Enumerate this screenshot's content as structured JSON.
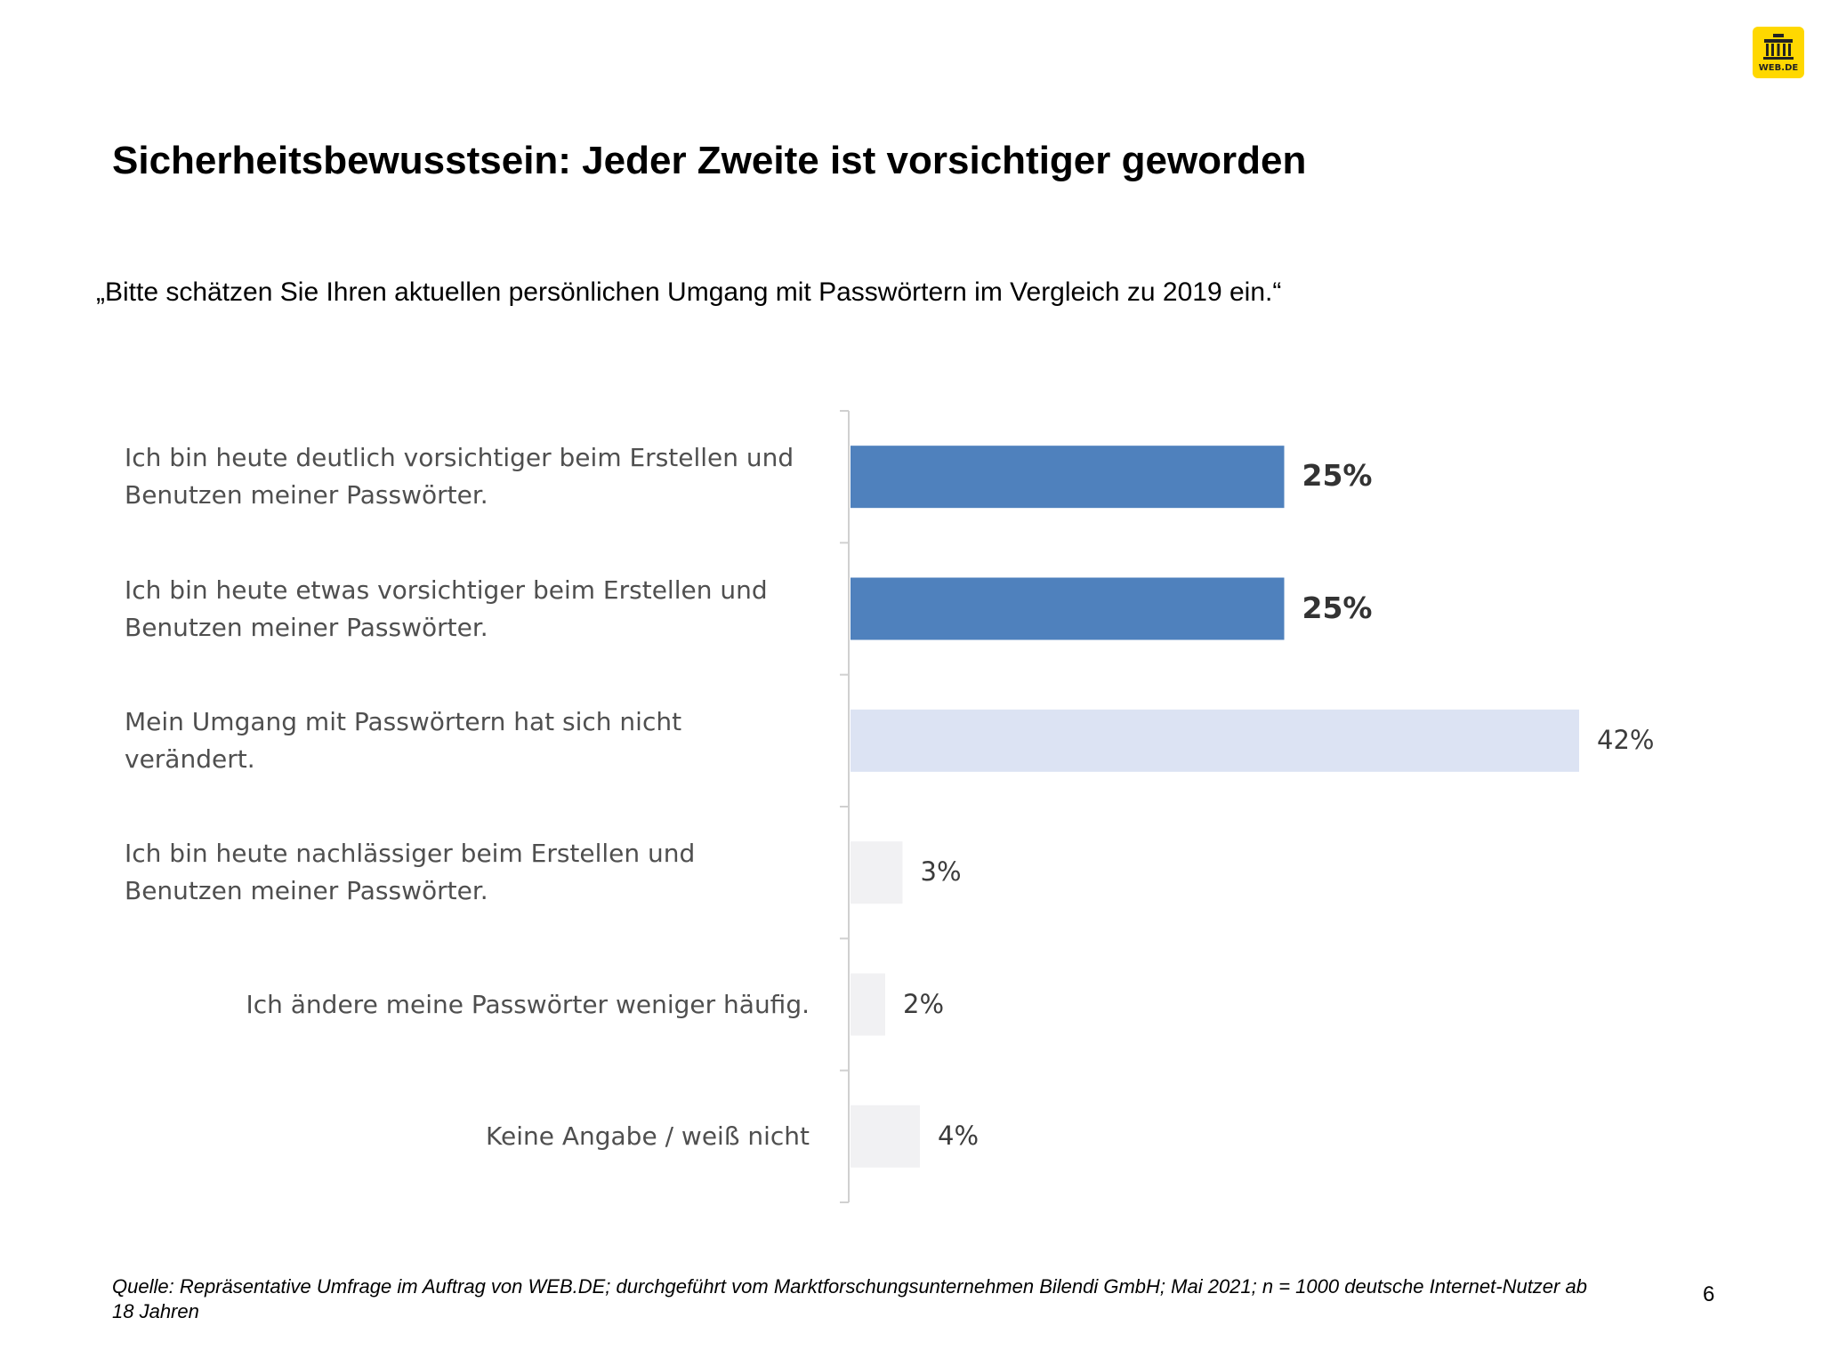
{
  "logo": {
    "text": "WEB.DE"
  },
  "title": "Sicherheitsbewusstsein: Jeder Zweite ist vorsichtiger geworden",
  "subtitle": "„Bitte schätzen Sie Ihren aktuellen persönlichen Umgang mit Passwörtern im Vergleich zu 2019 ein.“",
  "chart_data": {
    "type": "bar",
    "orientation": "horizontal",
    "categories": [
      "Ich bin heute deutlich vorsichtiger beim Erstellen und Benutzen meiner Passwörter.",
      "Ich bin heute etwas vorsichtiger beim Erstellen und Benutzen meiner Passwörter.",
      "Mein Umgang mit Passwörtern hat sich nicht verändert.",
      "Ich bin heute nachlässiger beim Erstellen und Benutzen meiner Passwörter.",
      "Ich ändere meine Passwörter weniger häufig.",
      "Keine Angabe / weiß nicht"
    ],
    "values": [
      25,
      25,
      42,
      3,
      2,
      4
    ],
    "value_labels": [
      "25%",
      "25%",
      "42%",
      "3%",
      "2%",
      "4%"
    ],
    "bar_colors": [
      "#4f81bd",
      "#4f81bd",
      "#dce3f3",
      "#f1f1f3",
      "#f1f1f3",
      "#f1f1f3"
    ],
    "bold_labels": [
      true,
      true,
      false,
      false,
      false,
      false
    ],
    "xlim": [
      0,
      50
    ],
    "grid": false,
    "legend": "none"
  },
  "footnote": "Quelle: Repräsentative Umfrage im Auftrag von WEB.DE; durchgeführt vom Marktforschungsunternehmen Bilendi GmbH; Mai 2021; n = 1000 deutsche Internet-Nutzer ab 18 Jahren",
  "page_number": "6"
}
